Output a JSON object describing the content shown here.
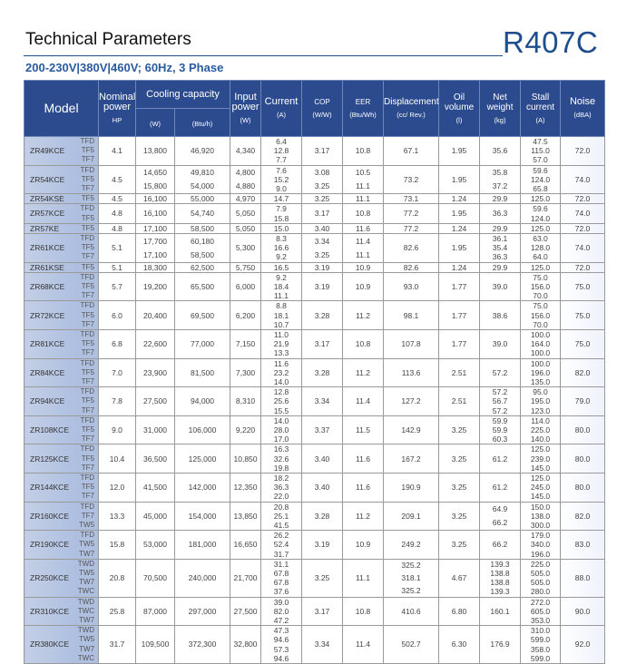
{
  "header": {
    "title": "Technical Parameters",
    "refrigerant": "R407C",
    "subtitle": "200-230V|380V|460V; 60Hz, 3 Phase"
  },
  "columns": {
    "model": "Model",
    "nominal": "Nominal power",
    "nominal_unit": "HP",
    "cooling": "Cooling capacity",
    "cooling_w": "(W)",
    "cooling_btu": "(Btu/h)",
    "input": "Input power",
    "input_unit": "(W)",
    "current": "Current",
    "current_unit": "(A)",
    "cop": "COP",
    "cop_unit": "(W/W)",
    "eer": "EER",
    "eer_unit": "(Btu/Wh)",
    "disp": "Displacement",
    "disp_unit": "(cc/ Rev.)",
    "oil": "Oil volume",
    "oil_unit": "(l)",
    "weight": "Net weight",
    "weight_unit": "(kg)",
    "stall": "Stall current",
    "stall_unit": "(A)",
    "noise": "Noise",
    "noise_unit": "(dBA)"
  },
  "rows": [
    {
      "model": "ZR49KCE",
      "variants": [
        "TFD",
        "TF5",
        "TF7"
      ],
      "hp": [
        "4.1"
      ],
      "w": [
        "13,800"
      ],
      "btu": [
        "46,920"
      ],
      "input": [
        "4,340"
      ],
      "current": [
        "6.4",
        "12.8",
        "7.7"
      ],
      "cop": [
        "3.17"
      ],
      "eer": [
        "10.8"
      ],
      "disp": [
        "67.1"
      ],
      "oil": [
        "1.95"
      ],
      "weight": [
        "35.6"
      ],
      "stall": [
        "47.5",
        "115.0",
        "57.0"
      ],
      "noise": [
        "72.0"
      ]
    },
    {
      "model": "ZR54KCE",
      "variants": [
        "TFD",
        "TF5",
        "TF7"
      ],
      "hp": [
        "4.5"
      ],
      "w": [
        "14,650",
        "15,800"
      ],
      "btu": [
        "49,810",
        "54,000"
      ],
      "input": [
        "4,800",
        "4,880"
      ],
      "current": [
        "7.6",
        "15.2",
        "9.0"
      ],
      "cop": [
        "3.08",
        "3.25"
      ],
      "eer": [
        "10.5",
        "11.1"
      ],
      "disp": [
        "73.2"
      ],
      "oil": [
        "1.95"
      ],
      "weight": [
        "35.8",
        "37.2"
      ],
      "stall": [
        "59.6",
        "124.0",
        "65.8"
      ],
      "noise": [
        "74.0"
      ]
    },
    {
      "model": "ZR54KSE",
      "variants": [
        "TF5"
      ],
      "hp": [
        "4.5"
      ],
      "w": [
        "16,100"
      ],
      "btu": [
        "55,000"
      ],
      "input": [
        "4,970"
      ],
      "current": [
        "14.7"
      ],
      "cop": [
        "3.25"
      ],
      "eer": [
        "11.1"
      ],
      "disp": [
        "73.1"
      ],
      "oil": [
        "1.24"
      ],
      "weight": [
        "29.9"
      ],
      "stall": [
        "125.0"
      ],
      "noise": [
        "72.0"
      ]
    },
    {
      "model": "ZR57KCE",
      "variants": [
        "TFD",
        "TF5"
      ],
      "hp": [
        "4.8"
      ],
      "w": [
        "16,100"
      ],
      "btu": [
        "54,740"
      ],
      "input": [
        "5,050"
      ],
      "current": [
        "7.9",
        "15.8"
      ],
      "cop": [
        "3.17"
      ],
      "eer": [
        "10.8"
      ],
      "disp": [
        "77.2"
      ],
      "oil": [
        "1.95"
      ],
      "weight": [
        "36.3"
      ],
      "stall": [
        "59.6",
        "124.0"
      ],
      "noise": [
        "74.0"
      ]
    },
    {
      "model": "ZR57KE",
      "variants": [
        "TF5"
      ],
      "hp": [
        "4.8"
      ],
      "w": [
        "17,100"
      ],
      "btu": [
        "58,500"
      ],
      "input": [
        "5,050"
      ],
      "current": [
        "15.0"
      ],
      "cop": [
        "3.40"
      ],
      "eer": [
        "11.6"
      ],
      "disp": [
        "77.2"
      ],
      "oil": [
        "1.24"
      ],
      "weight": [
        "29.9"
      ],
      "stall": [
        "125.0"
      ],
      "noise": [
        "72.0"
      ]
    },
    {
      "model": "ZR61KCE",
      "variants": [
        "TFD",
        "TF5",
        "TF7"
      ],
      "hp": [
        "5.1"
      ],
      "w": [
        "17,700",
        "17,100"
      ],
      "btu": [
        "60,180",
        "58,500"
      ],
      "input": [
        "5,300"
      ],
      "current": [
        "8.3",
        "16.6",
        "9.2"
      ],
      "cop": [
        "3.34",
        "3.25"
      ],
      "eer": [
        "11.4",
        "11.1"
      ],
      "disp": [
        "82.6"
      ],
      "oil": [
        "1.95"
      ],
      "weight": [
        "36.1",
        "35.4",
        "36.3"
      ],
      "stall": [
        "63.0",
        "128.0",
        "64.0"
      ],
      "noise": [
        "74.0"
      ]
    },
    {
      "model": "ZR61KSE",
      "variants": [
        "TF5"
      ],
      "hp": [
        "5.1"
      ],
      "w": [
        "18,300"
      ],
      "btu": [
        "62,500"
      ],
      "input": [
        "5,750"
      ],
      "current": [
        "16.5"
      ],
      "cop": [
        "3.19"
      ],
      "eer": [
        "10.9"
      ],
      "disp": [
        "82.6"
      ],
      "oil": [
        "1.24"
      ],
      "weight": [
        "29.9"
      ],
      "stall": [
        "125.0"
      ],
      "noise": [
        "72.0"
      ]
    },
    {
      "model": "ZR68KCE",
      "variants": [
        "TFD",
        "TF5",
        "TF7"
      ],
      "hp": [
        "5.7"
      ],
      "w": [
        "19,200"
      ],
      "btu": [
        "65,500"
      ],
      "input": [
        "6,000"
      ],
      "current": [
        "9.2",
        "18.4",
        "11.1"
      ],
      "cop": [
        "3.19"
      ],
      "eer": [
        "10.9"
      ],
      "disp": [
        "93.0"
      ],
      "oil": [
        "1.77"
      ],
      "weight": [
        "39.0"
      ],
      "stall": [
        "75.0",
        "156.0",
        "70.0"
      ],
      "noise": [
        "75.0"
      ]
    },
    {
      "model": "ZR72KCE",
      "variants": [
        "TFD",
        "TF5",
        "TF7"
      ],
      "hp": [
        "6.0"
      ],
      "w": [
        "20,400"
      ],
      "btu": [
        "69,500"
      ],
      "input": [
        "6,200"
      ],
      "current": [
        "8.8",
        "18.1",
        "10.7"
      ],
      "cop": [
        "3.28"
      ],
      "eer": [
        "11.2"
      ],
      "disp": [
        "98.1"
      ],
      "oil": [
        "1.77"
      ],
      "weight": [
        "38.6"
      ],
      "stall": [
        "75.0",
        "156.0",
        "70.0"
      ],
      "noise": [
        "75.0"
      ]
    },
    {
      "model": "ZR81KCE",
      "variants": [
        "TFD",
        "TF5",
        "TF7"
      ],
      "hp": [
        "6.8"
      ],
      "w": [
        "22,600"
      ],
      "btu": [
        "77,000"
      ],
      "input": [
        "7,150"
      ],
      "current": [
        "11.0",
        "21.9",
        "13.3"
      ],
      "cop": [
        "3.17"
      ],
      "eer": [
        "10.8"
      ],
      "disp": [
        "107.8"
      ],
      "oil": [
        "1.77"
      ],
      "weight": [
        "39.0"
      ],
      "stall": [
        "100.0",
        "164.0",
        "100.0"
      ],
      "noise": [
        "75.0"
      ]
    },
    {
      "model": "ZR84KCE",
      "variants": [
        "TFD",
        "TF5",
        "TF7"
      ],
      "hp": [
        "7.0"
      ],
      "w": [
        "23,900"
      ],
      "btu": [
        "81,500"
      ],
      "input": [
        "7,300"
      ],
      "current": [
        "11.6",
        "23.2",
        "14.0"
      ],
      "cop": [
        "3.28"
      ],
      "eer": [
        "11.2"
      ],
      "disp": [
        "113.6"
      ],
      "oil": [
        "2.51"
      ],
      "weight": [
        "57.2"
      ],
      "stall": [
        "100.0",
        "196.0",
        "135.0"
      ],
      "noise": [
        "82.0"
      ]
    },
    {
      "model": "ZR94KCE",
      "variants": [
        "TFD",
        "TF5",
        "TF7"
      ],
      "hp": [
        "7.8"
      ],
      "w": [
        "27,500"
      ],
      "btu": [
        "94,000"
      ],
      "input": [
        "8,310"
      ],
      "current": [
        "12.8",
        "25.6",
        "15.5"
      ],
      "cop": [
        "3.34"
      ],
      "eer": [
        "11.4"
      ],
      "disp": [
        "127.2"
      ],
      "oil": [
        "2.51"
      ],
      "weight": [
        "57.2",
        "56.7",
        "57.2"
      ],
      "stall": [
        "95.0",
        "195.0",
        "123.0"
      ],
      "noise": [
        "79.0"
      ]
    },
    {
      "model": "ZR108KCE",
      "variants": [
        "TFD",
        "TF5",
        "TF7"
      ],
      "hp": [
        "9.0"
      ],
      "w": [
        "31,000"
      ],
      "btu": [
        "106,000"
      ],
      "input": [
        "9,220"
      ],
      "current": [
        "14.0",
        "28.0",
        "17.0"
      ],
      "cop": [
        "3.37"
      ],
      "eer": [
        "11.5"
      ],
      "disp": [
        "142.9"
      ],
      "oil": [
        "3.25"
      ],
      "weight": [
        "59.9",
        "59.9",
        "60.3"
      ],
      "stall": [
        "114.0",
        "225.0",
        "140.0"
      ],
      "noise": [
        "80.0"
      ]
    },
    {
      "model": "ZR125KCE",
      "variants": [
        "TFD",
        "TF5",
        "TF7"
      ],
      "hp": [
        "10.4"
      ],
      "w": [
        "36,500"
      ],
      "btu": [
        "125,000"
      ],
      "input": [
        "10,850"
      ],
      "current": [
        "16.3",
        "32.6",
        "19.8"
      ],
      "cop": [
        "3.40"
      ],
      "eer": [
        "11.6"
      ],
      "disp": [
        "167.2"
      ],
      "oil": [
        "3.25"
      ],
      "weight": [
        "61.2"
      ],
      "stall": [
        "125.0",
        "239.0",
        "145.0"
      ],
      "noise": [
        "80.0"
      ]
    },
    {
      "model": "ZR144KCE",
      "variants": [
        "TFD",
        "TF5",
        "TF7"
      ],
      "hp": [
        "12.0"
      ],
      "w": [
        "41,500"
      ],
      "btu": [
        "142,000"
      ],
      "input": [
        "12,350"
      ],
      "current": [
        "18.2",
        "36.3",
        "22.0"
      ],
      "cop": [
        "3.40"
      ],
      "eer": [
        "11.6"
      ],
      "disp": [
        "190.9"
      ],
      "oil": [
        "3.25"
      ],
      "weight": [
        "61.2"
      ],
      "stall": [
        "125.0",
        "245.0",
        "145.0"
      ],
      "noise": [
        "80.0"
      ]
    },
    {
      "model": "ZR160KCE",
      "variants": [
        "TFD",
        "TF7",
        "TW5"
      ],
      "hp": [
        "13.3"
      ],
      "w": [
        "45,000"
      ],
      "btu": [
        "154,000"
      ],
      "input": [
        "13,850"
      ],
      "current": [
        "20.8",
        "25.1",
        "41.5"
      ],
      "cop": [
        "3.28"
      ],
      "eer": [
        "11.2"
      ],
      "disp": [
        "209.1"
      ],
      "oil": [
        "3.25"
      ],
      "weight": [
        "64.9",
        "66.2"
      ],
      "stall": [
        "150.0",
        "138.0",
        "300.0"
      ],
      "noise": [
        "82.0"
      ]
    },
    {
      "model": "ZR190KCE",
      "variants": [
        "TFD",
        "TW5",
        "TW7"
      ],
      "hp": [
        "15.8"
      ],
      "w": [
        "53,000"
      ],
      "btu": [
        "181,000"
      ],
      "input": [
        "16,650"
      ],
      "current": [
        "26.2",
        "52.4",
        "31.7"
      ],
      "cop": [
        "3.19"
      ],
      "eer": [
        "10.9"
      ],
      "disp": [
        "249.2"
      ],
      "oil": [
        "3.25"
      ],
      "weight": [
        "66.2"
      ],
      "stall": [
        "179.0",
        "340.0",
        "196.0"
      ],
      "noise": [
        "83.0"
      ]
    },
    {
      "model": "ZR250KCE",
      "variants": [
        "TWD",
        "TW5",
        "TW7",
        "TWC"
      ],
      "hp": [
        "20.8"
      ],
      "w": [
        "70,500"
      ],
      "btu": [
        "240,000"
      ],
      "input": [
        "21,700"
      ],
      "current": [
        "31.1",
        "67.8",
        "67.8",
        "37.6"
      ],
      "cop": [
        "3.25"
      ],
      "eer": [
        "11.1"
      ],
      "disp": [
        "325.2",
        "318.1",
        "325.2"
      ],
      "oil": [
        "4.67"
      ],
      "weight": [
        "139.3",
        "138.8",
        "138.8",
        "139.3"
      ],
      "stall": [
        "225.0",
        "505.0",
        "505.0",
        "280.0"
      ],
      "noise": [
        "88.0"
      ]
    },
    {
      "model": "ZR310KCE",
      "variants": [
        "TWD",
        "TWC",
        "TW7"
      ],
      "hp": [
        "25.8"
      ],
      "w": [
        "87,000"
      ],
      "btu": [
        "297,000"
      ],
      "input": [
        "27,500"
      ],
      "current": [
        "39.0",
        "82.0",
        "47.2"
      ],
      "cop": [
        "3.17"
      ],
      "eer": [
        "10.8"
      ],
      "disp": [
        "410.6"
      ],
      "oil": [
        "6.80"
      ],
      "weight": [
        "160.1"
      ],
      "stall": [
        "272.0",
        "605.0",
        "353.0"
      ],
      "noise": [
        "90.0"
      ]
    },
    {
      "model": "ZR380KCE",
      "variants": [
        "TWD",
        "TW5",
        "TW7",
        "TWC"
      ],
      "hp": [
        "31.7"
      ],
      "w": [
        "109,500"
      ],
      "btu": [
        "372,300"
      ],
      "input": [
        "32,800"
      ],
      "current": [
        "47.3",
        "94.6",
        "57.3",
        "94.6"
      ],
      "cop": [
        "3.34"
      ],
      "eer": [
        "11.4"
      ],
      "disp": [
        "502.7"
      ],
      "oil": [
        "6.30"
      ],
      "weight": [
        "176.9"
      ],
      "stall": [
        "310.0",
        "599.0",
        "358.0",
        "599.0"
      ],
      "noise": [
        "92.0"
      ]
    }
  ]
}
